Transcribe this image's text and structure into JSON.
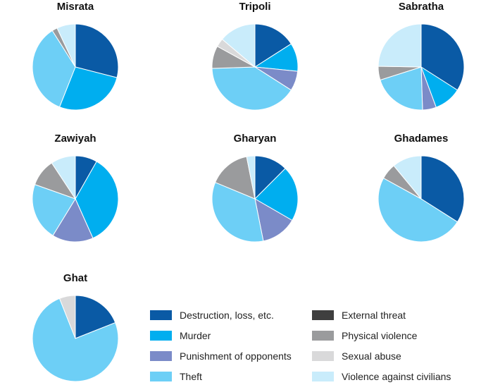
{
  "chart_data": {
    "type": "pie",
    "categories": [
      "Destruction, loss, etc.",
      "Murder",
      "Punishment of opponents",
      "Theft",
      "External threat",
      "Physical violence",
      "Sexual abuse",
      "Violence against civilians"
    ],
    "colors": [
      "#0a5aa5",
      "#00aeef",
      "#7b8bc8",
      "#6dcff6",
      "#3f3f3f",
      "#9a9b9d",
      "#d9d9da",
      "#c9ecfb"
    ],
    "pies": [
      {
        "title": "Misrata",
        "values": [
          29,
          27,
          0,
          35,
          0,
          2,
          0,
          7
        ]
      },
      {
        "title": "Tripoli",
        "values": [
          15,
          10,
          7,
          38,
          0,
          8,
          3,
          13
        ]
      },
      {
        "title": "Sabratha",
        "values": [
          33,
          10,
          5,
          20,
          0,
          5,
          0,
          24
        ]
      },
      {
        "title": "Zawiyah",
        "values": [
          8,
          34,
          15,
          21,
          0,
          10,
          0,
          9
        ]
      },
      {
        "title": "Gharyan",
        "values": [
          12,
          20,
          13,
          33,
          0,
          15,
          0,
          3
        ]
      },
      {
        "title": "Ghadames",
        "values": [
          34,
          0,
          0,
          49,
          0,
          6,
          0,
          11
        ]
      },
      {
        "title": "Ghat",
        "values": [
          19,
          0,
          0,
          75,
          0,
          0,
          6,
          0
        ]
      }
    ],
    "legend": {
      "columns": [
        [
          "Destruction, loss, etc.",
          "Murder",
          "Punishment of opponents",
          "Theft"
        ],
        [
          "External threat",
          "Physical violence",
          "Sexual abuse",
          "Violence against civilians"
        ]
      ]
    }
  }
}
